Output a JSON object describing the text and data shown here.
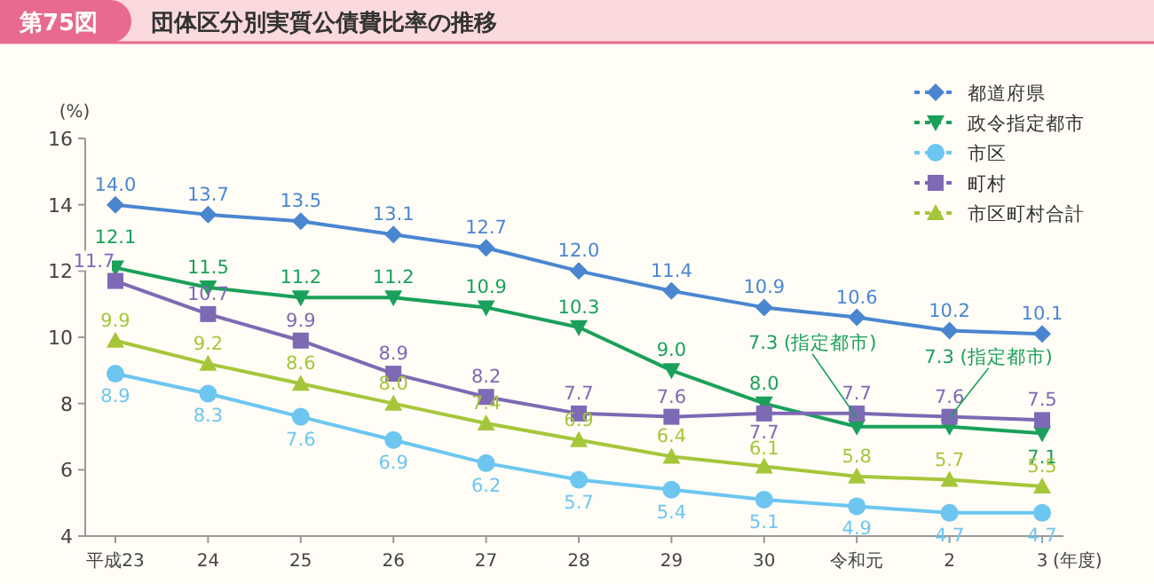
{
  "chart_data": {
    "type": "line",
    "title": "団体区分別実質公債費比率の推移",
    "ylabel": "(%)",
    "xlabel": "(年度)",
    "categories": [
      "平成23",
      "24",
      "25",
      "26",
      "27",
      "28",
      "29",
      "30",
      "令和元",
      "2",
      "3"
    ],
    "ylim": [
      4,
      16
    ],
    "yticks": [
      4,
      6,
      8,
      10,
      12,
      14,
      16
    ],
    "grid": false,
    "legend": "top right",
    "series": [
      {
        "name": "都道府県",
        "color": "#4a86d0",
        "marker": "diamond",
        "values": [
          14.0,
          13.7,
          13.5,
          13.1,
          12.7,
          12.0,
          11.4,
          10.9,
          10.6,
          10.2,
          10.1
        ],
        "value_labels": [
          "14.0",
          "13.7",
          "13.5",
          "13.1",
          "12.7",
          "12.0",
          "11.4",
          "10.9",
          "10.6",
          "10.2",
          "10.1"
        ]
      },
      {
        "name": "政令指定都市",
        "color": "#1aa05a",
        "marker": "triangle",
        "values": [
          12.1,
          11.5,
          11.2,
          11.2,
          10.9,
          10.3,
          9.0,
          8.0,
          7.3,
          7.3,
          7.1
        ],
        "value_labels": [
          "12.1",
          "11.5",
          "11.2",
          "11.2",
          "10.9",
          "10.3",
          "9.0",
          "8.0",
          null,
          null,
          "7.1"
        ]
      },
      {
        "name": "市区",
        "color": "#6cc6f0",
        "marker": "circle",
        "values": [
          8.9,
          8.3,
          7.6,
          6.9,
          6.2,
          5.7,
          5.4,
          5.1,
          4.9,
          4.7,
          4.7
        ],
        "value_labels": [
          "8.9",
          "8.3",
          "7.6",
          "6.9",
          "6.2",
          "5.7",
          "5.4",
          "5.1",
          "4.9",
          "4.7",
          "4.7"
        ]
      },
      {
        "name": "町村",
        "color": "#7e69b4",
        "marker": "square",
        "values": [
          11.7,
          10.7,
          9.9,
          8.9,
          8.2,
          7.7,
          7.6,
          7.7,
          7.7,
          7.6,
          7.5
        ],
        "value_labels": [
          "11.7",
          "10.7",
          "9.9",
          "8.9",
          "8.2",
          "7.7",
          "7.6",
          "7.7",
          "7.7",
          "7.6",
          "7.5"
        ]
      },
      {
        "name": "市区町村合計",
        "color": "#a6c63a",
        "marker": "triangle",
        "values": [
          9.9,
          9.2,
          8.6,
          8.0,
          7.4,
          6.9,
          6.4,
          6.1,
          5.8,
          5.7,
          5.5
        ],
        "value_labels": [
          "9.9",
          "9.2",
          "8.6",
          "8.0",
          "7.4",
          "6.9",
          "6.4",
          "6.1",
          "5.8",
          "5.7",
          "5.5"
        ]
      }
    ],
    "annotations": [
      "第75図",
      {
        "text": "7.3 (指定都市)",
        "x": "令和元",
        "y": 7.3
      },
      {
        "text": "7.3 (指定都市)",
        "x": "2",
        "y": 7.3
      }
    ]
  }
}
